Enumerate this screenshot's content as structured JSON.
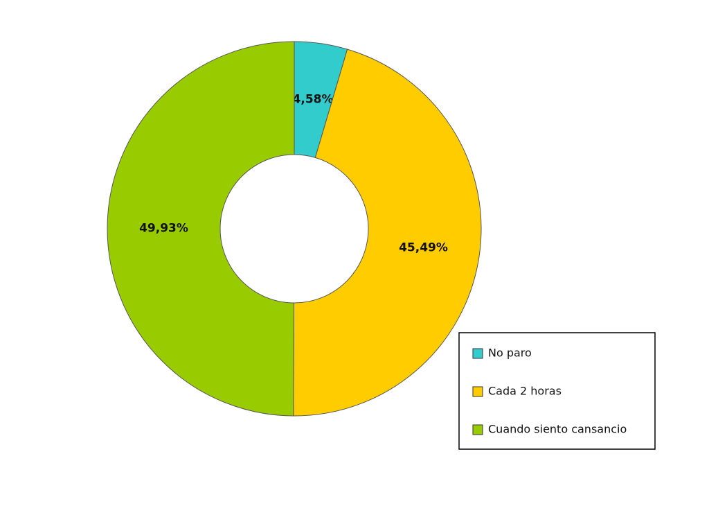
{
  "chart_data": {
    "type": "donut",
    "categories": [
      "No paro",
      "Cada 2 horas",
      "Cuando siento cansancio"
    ],
    "values": [
      4.58,
      45.49,
      49.93
    ],
    "value_labels": [
      "4,58%",
      "45,49%",
      "49,93%"
    ],
    "colors": [
      "#33cccc",
      "#ffcc00",
      "#99cc00"
    ],
    "legend": "bottom-right"
  }
}
